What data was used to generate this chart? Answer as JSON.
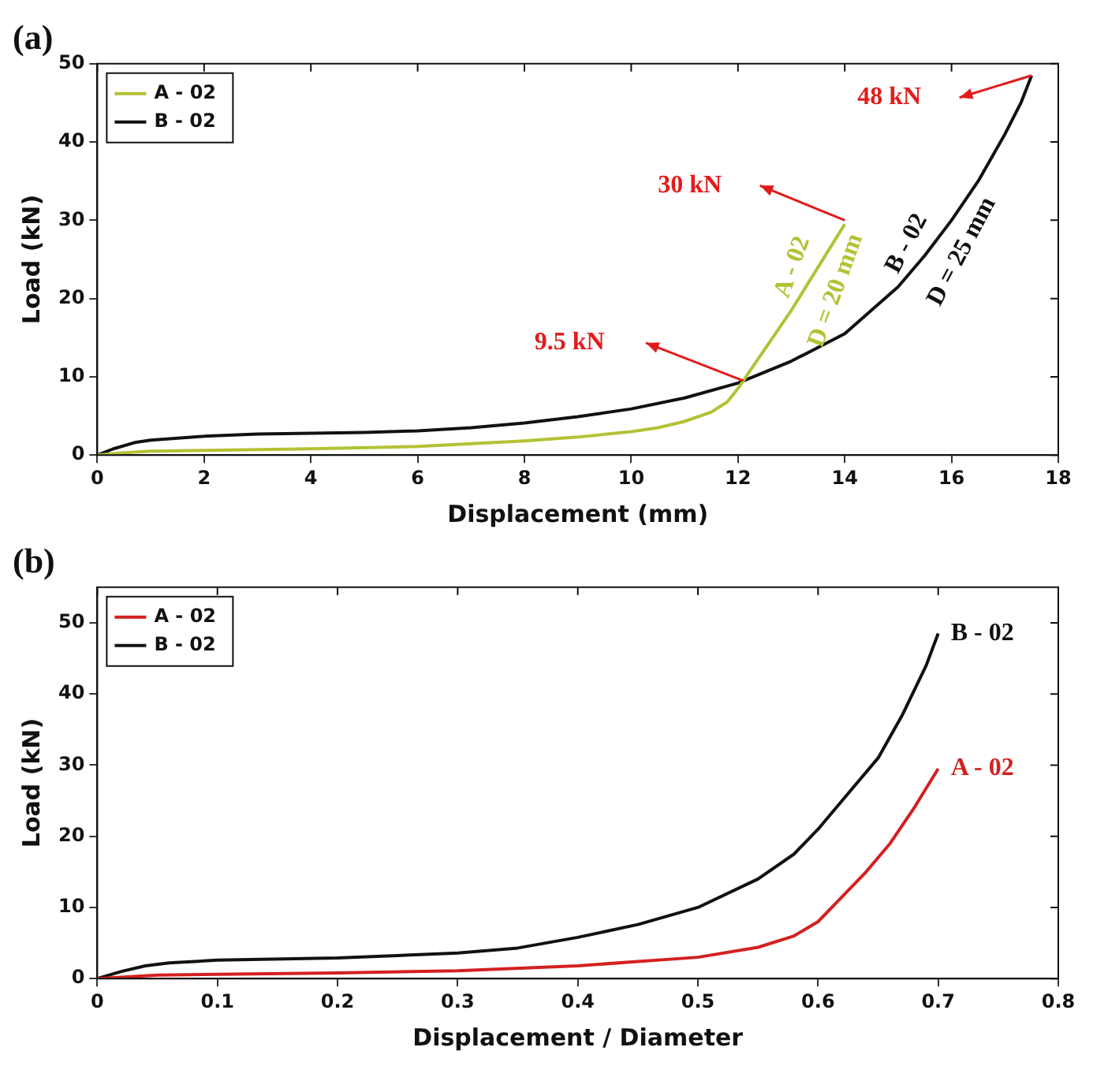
{
  "chart_data": [
    {
      "type": "line",
      "title": "(a)",
      "xlabel": "Displacement (mm)",
      "ylabel": "Load (kN)",
      "xlim": [
        0,
        18
      ],
      "xticks": [
        0,
        2,
        4,
        6,
        8,
        10,
        12,
        14,
        16,
        18
      ],
      "ylim": [
        0,
        50
      ],
      "yticks": [
        0,
        10,
        20,
        30,
        40,
        50
      ],
      "grid": false,
      "legend": "top left",
      "marker": "none",
      "line_style": "solid",
      "series": [
        {
          "name": "A - 02",
          "color": "#b3c234",
          "x": [
            0,
            0.5,
            1,
            2,
            4,
            6,
            8,
            9,
            10,
            10.5,
            11,
            11.5,
            11.8,
            12,
            12.2,
            12.5,
            13,
            13.5,
            14
          ],
          "values": [
            0,
            0.3,
            0.5,
            0.6,
            0.8,
            1.1,
            1.8,
            2.3,
            3,
            3.5,
            4.3,
            5.5,
            6.8,
            8.5,
            10.5,
            13.5,
            18.5,
            24,
            29.5
          ]
        },
        {
          "name": "B - 02",
          "color": "#111111",
          "x": [
            0,
            0.3,
            0.7,
            1,
            2,
            3,
            4,
            5,
            6,
            7,
            8,
            9,
            10,
            11,
            12,
            13,
            14,
            14.5,
            15,
            15.5,
            16,
            16.5,
            17,
            17.3,
            17.5
          ],
          "values": [
            0,
            0.8,
            1.6,
            1.9,
            2.4,
            2.7,
            2.8,
            2.9,
            3.1,
            3.5,
            4.1,
            4.9,
            5.9,
            7.3,
            9.2,
            12,
            15.5,
            18.5,
            21.5,
            25.5,
            30,
            35,
            41,
            45,
            48.5
          ]
        }
      ],
      "annotations": [
        "30 kN",
        "48 kN",
        "9.5 kN",
        "A - 02",
        "D = 20 mm",
        "B - 02",
        "D = 25 mm"
      ]
    },
    {
      "type": "line",
      "title": "(b)",
      "xlabel": "Displacement / Diameter",
      "ylabel": "Load (kN)",
      "xlim": [
        0,
        0.8
      ],
      "xticks": [
        0,
        0.1,
        0.2,
        0.3,
        0.4,
        0.5,
        0.6,
        0.7,
        0.8
      ],
      "ylim": [
        0,
        55
      ],
      "yticks": [
        0,
        10,
        20,
        30,
        40,
        50
      ],
      "grid": false,
      "legend": "top left",
      "marker": "none",
      "line_style": "solid",
      "series": [
        {
          "name": "A - 02",
          "color": "#d42020",
          "x": [
            0,
            0.05,
            0.1,
            0.2,
            0.3,
            0.4,
            0.45,
            0.5,
            0.55,
            0.58,
            0.6,
            0.62,
            0.64,
            0.66,
            0.68,
            0.7
          ],
          "values": [
            0,
            0.5,
            0.6,
            0.8,
            1.1,
            1.8,
            2.4,
            3,
            4.4,
            6,
            8,
            11.5,
            15,
            19,
            24,
            29.5
          ]
        },
        {
          "name": "B - 02",
          "color": "#111111",
          "x": [
            0,
            0.02,
            0.04,
            0.06,
            0.1,
            0.2,
            0.3,
            0.35,
            0.4,
            0.45,
            0.5,
            0.55,
            0.58,
            0.6,
            0.62,
            0.65,
            0.67,
            0.69,
            0.7
          ],
          "values": [
            0,
            1,
            1.8,
            2.2,
            2.6,
            2.9,
            3.6,
            4.3,
            5.8,
            7.6,
            10,
            14,
            17.5,
            21,
            25,
            31,
            37,
            44,
            48.5
          ]
        }
      ],
      "annotations": [
        {
          "text": "B - 02",
          "x": 0.7,
          "y": 48.5
        },
        {
          "text": "A - 02",
          "x": 0.7,
          "y": 29.5
        }
      ]
    }
  ]
}
